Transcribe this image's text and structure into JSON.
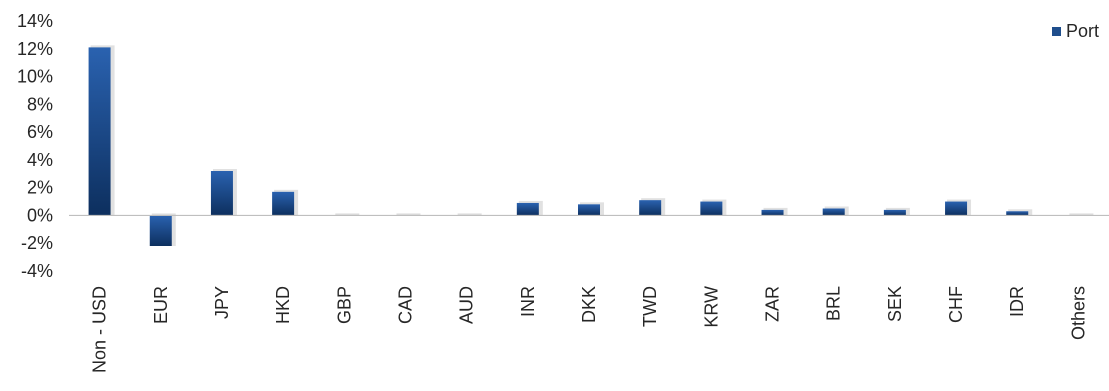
{
  "chart_data": {
    "type": "bar",
    "categories": [
      "Non - USD",
      "EUR",
      "JPY",
      "HKD",
      "GBP",
      "CAD",
      "AUD",
      "INR",
      "DKK",
      "TWD",
      "KRW",
      "ZAR",
      "BRL",
      "SEK",
      "CHF",
      "IDR",
      "Others"
    ],
    "series": [
      {
        "name": "Port",
        "values": [
          12.1,
          -2.2,
          3.2,
          1.7,
          0.0,
          0.0,
          0.0,
          0.9,
          0.8,
          1.1,
          1.0,
          0.4,
          0.5,
          0.4,
          1.0,
          0.3,
          0.0
        ],
        "color": "#1f4e8c"
      }
    ],
    "ylim": [
      -4,
      14
    ],
    "yticks": [
      -4,
      -2,
      0,
      2,
      4,
      6,
      8,
      10,
      12,
      14
    ],
    "ytick_labels": [
      "-4%",
      "-2%",
      "0%",
      "2%",
      "4%",
      "6%",
      "8%",
      "10%",
      "12%",
      "14%"
    ],
    "grid": false,
    "legend": {
      "position": "top-right",
      "labels": [
        "Port"
      ]
    },
    "title": "",
    "xlabel": "",
    "ylabel": ""
  }
}
